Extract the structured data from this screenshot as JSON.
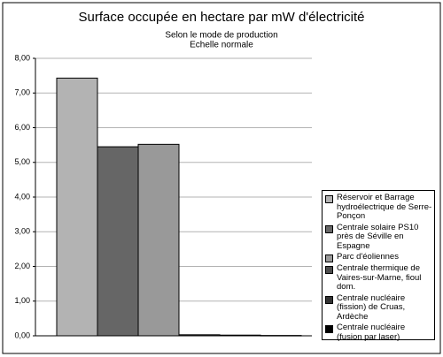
{
  "chart_data": {
    "type": "bar",
    "title": "Surface occupée en hectare par mW d'électricité",
    "subtitle": [
      "Selon le mode de production",
      "Echelle normale"
    ],
    "series": [
      {
        "name": "Réservoir et Barrage hydroélectrique de Serre-Ponçon",
        "color": "#b3b3b3",
        "values": [
          7.43
        ]
      },
      {
        "name": "Centrale solaire PS10 près de Séville en Espagne",
        "color": "#666666",
        "values": [
          5.45
        ]
      },
      {
        "name": "Parc d'éoliennes",
        "color": "#999999",
        "values": [
          5.52
        ]
      },
      {
        "name": "Centrale thermique de Vaires-sur-Marne, fioul dom.",
        "color": "#4d4d4d",
        "values": [
          0.03
        ]
      },
      {
        "name": "Centrale nucléaire (fission) de Cruas, Ardèche",
        "color": "#333333",
        "values": [
          0.02
        ]
      },
      {
        "name": "Centrale nucléaire (fusion par laser)",
        "color": "#000000",
        "values": [
          0.01
        ]
      }
    ],
    "ylim": [
      0,
      8
    ],
    "yticks": [
      {
        "value": 0,
        "label": "0,00"
      },
      {
        "value": 1,
        "label": "1,00"
      },
      {
        "value": 2,
        "label": "2,00"
      },
      {
        "value": 3,
        "label": "3,00"
      },
      {
        "value": 4,
        "label": "4,00"
      },
      {
        "value": 5,
        "label": "5,00"
      },
      {
        "value": 6,
        "label": "6,00"
      },
      {
        "value": 7,
        "label": "7,00"
      },
      {
        "value": 8,
        "label": "8,00"
      }
    ],
    "grid": true
  }
}
